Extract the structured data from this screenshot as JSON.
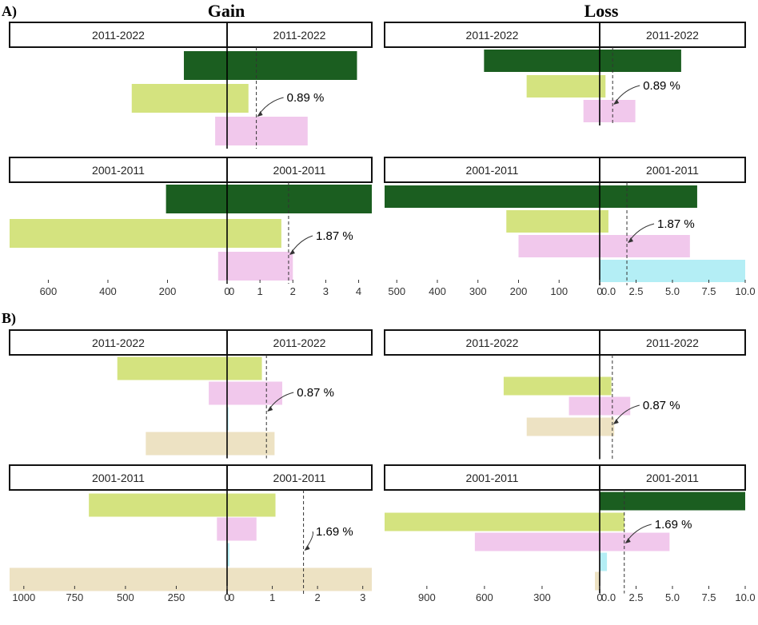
{
  "figure": {
    "section_labels": [
      "A)",
      "B)"
    ],
    "column_titles": [
      "Gain",
      "Loss"
    ],
    "colors": {
      "dark_green": "#1b5e20",
      "light_green": "#d4e37f",
      "pink": "#f1c8ec",
      "cyan": "#b4eef5",
      "beige": "#ede2c3"
    }
  },
  "chart_data": [
    {
      "id": "A-gain",
      "section": "A)",
      "type": "bar",
      "orientation": "horizontal",
      "left_axis": {
        "domain": [
          730,
          0
        ],
        "ticks": [
          600,
          400,
          200,
          0
        ],
        "tick_labels": [
          "600",
          "400",
          "200",
          "0"
        ]
      },
      "right_axis": {
        "domain": [
          0,
          4.4
        ],
        "ticks": [
          0,
          1,
          2,
          3,
          4
        ],
        "tick_labels": [
          "0",
          "1",
          "2",
          "3",
          "4"
        ]
      },
      "panels": [
        {
          "period_left": "2011-2022",
          "period_right": "2011-2022",
          "reference_value": 0.89,
          "annotation": "0.89 %",
          "bars": [
            {
              "category": "dark_green",
              "left": 145,
              "right": 3.95
            },
            {
              "category": "light_green",
              "left": 320,
              "right": 0.65
            },
            {
              "category": "pink",
              "left": 40,
              "right": 2.45
            }
          ]
        },
        {
          "period_left": "2001-2011",
          "period_right": "2001-2011",
          "reference_value": 1.87,
          "annotation": "1.87 %",
          "bars": [
            {
              "category": "dark_green",
              "left": 205,
              "right": 4.4
            },
            {
              "category": "light_green",
              "left": 730,
              "right": 1.65
            },
            {
              "category": "pink",
              "left": 30,
              "right": 2.0
            }
          ]
        }
      ]
    },
    {
      "id": "A-loss",
      "section": "A)",
      "type": "bar",
      "orientation": "horizontal",
      "left_axis": {
        "domain": [
          530,
          0
        ],
        "ticks": [
          500,
          400,
          300,
          200,
          100,
          0
        ],
        "tick_labels": [
          "500",
          "400",
          "300",
          "200",
          "100",
          "0"
        ]
      },
      "right_axis": {
        "domain": [
          0,
          10
        ],
        "ticks": [
          0,
          2.5,
          5.0,
          7.5,
          10.0
        ],
        "tick_labels": [
          "0.0",
          "2.5",
          "5.0",
          "7.5",
          "10.0"
        ]
      },
      "panels": [
        {
          "period_left": "2011-2022",
          "period_right": "2011-2022",
          "reference_value": 0.89,
          "annotation": "0.89 %",
          "bars": [
            {
              "category": "dark_green",
              "left": 285,
              "right": 5.6
            },
            {
              "category": "light_green",
              "left": 180,
              "right": 0.4
            },
            {
              "category": "pink",
              "left": 40,
              "right": 2.45
            }
          ]
        },
        {
          "period_left": "2001-2011",
          "period_right": "2001-2011",
          "reference_value": 1.87,
          "annotation": "1.87 %",
          "bars": [
            {
              "category": "dark_green",
              "left": 530,
              "right": 6.7
            },
            {
              "category": "light_green",
              "left": 230,
              "right": 0.6
            },
            {
              "category": "pink",
              "left": 200,
              "right": 6.2
            },
            {
              "category": "cyan",
              "left": 0,
              "right": 10.0
            }
          ]
        }
      ]
    },
    {
      "id": "B-gain",
      "section": "B)",
      "type": "bar",
      "orientation": "horizontal",
      "left_axis": {
        "domain": [
          1070,
          0
        ],
        "ticks": [
          1000,
          750,
          500,
          250,
          0
        ],
        "tick_labels": [
          "1000",
          "750",
          "500",
          "250",
          "0"
        ]
      },
      "right_axis": {
        "domain": [
          0,
          3.2
        ],
        "ticks": [
          0,
          1,
          2,
          3
        ],
        "tick_labels": [
          "0",
          "1",
          "2",
          "3"
        ]
      },
      "panels": [
        {
          "period_left": "2011-2022",
          "period_right": "2011-2022",
          "reference_value": 0.87,
          "annotation": "0.87 %",
          "bars": [
            {
              "category": "light_green",
              "left": 540,
              "right": 0.77
            },
            {
              "category": "pink",
              "left": 90,
              "right": 1.22
            },
            {
              "category": "cyan",
              "left": 0,
              "right": 0.03
            },
            {
              "category": "beige",
              "left": 400,
              "right": 1.05
            }
          ]
        },
        {
          "period_left": "2001-2011",
          "period_right": "2001-2011",
          "reference_value": 1.69,
          "annotation": "1.69 %",
          "bars": [
            {
              "category": "light_green",
              "left": 680,
              "right": 1.07
            },
            {
              "category": "pink",
              "left": 50,
              "right": 0.65
            },
            {
              "category": "cyan",
              "left": 0,
              "right": 0.05
            },
            {
              "category": "beige",
              "left": 1070,
              "right": 3.2
            }
          ]
        }
      ]
    },
    {
      "id": "B-loss",
      "section": "B)",
      "type": "bar",
      "orientation": "horizontal",
      "left_axis": {
        "domain": [
          1120,
          0
        ],
        "ticks": [
          900,
          600,
          300,
          0
        ],
        "tick_labels": [
          "900",
          "600",
          "300",
          "0"
        ]
      },
      "right_axis": {
        "domain": [
          0,
          10
        ],
        "ticks": [
          0,
          2.5,
          5.0,
          7.5,
          10.0
        ],
        "tick_labels": [
          "0.0",
          "2.5",
          "5.0",
          "7.5",
          "10.0"
        ]
      },
      "panels": [
        {
          "period_left": "2011-2022",
          "period_right": "2011-2022",
          "reference_value": 0.87,
          "annotation": "0.87 %",
          "bars": [
            {
              "category": "light_green",
              "left": 500,
              "right": 0.8
            },
            {
              "category": "pink",
              "left": 160,
              "right": 2.1
            },
            {
              "category": "beige",
              "left": 380,
              "right": 1.0
            }
          ]
        },
        {
          "period_left": "2001-2011",
          "period_right": "2001-2011",
          "reference_value": 1.69,
          "annotation": "1.69 %",
          "bars": [
            {
              "category": "dark_green",
              "left": 0,
              "right": 10.0
            },
            {
              "category": "light_green",
              "left": 1120,
              "right": 1.7
            },
            {
              "category": "pink",
              "left": 650,
              "right": 4.8
            },
            {
              "category": "cyan",
              "left": 0,
              "right": 0.5
            },
            {
              "category": "beige",
              "left": 25,
              "right": 0
            }
          ]
        }
      ]
    }
  ]
}
